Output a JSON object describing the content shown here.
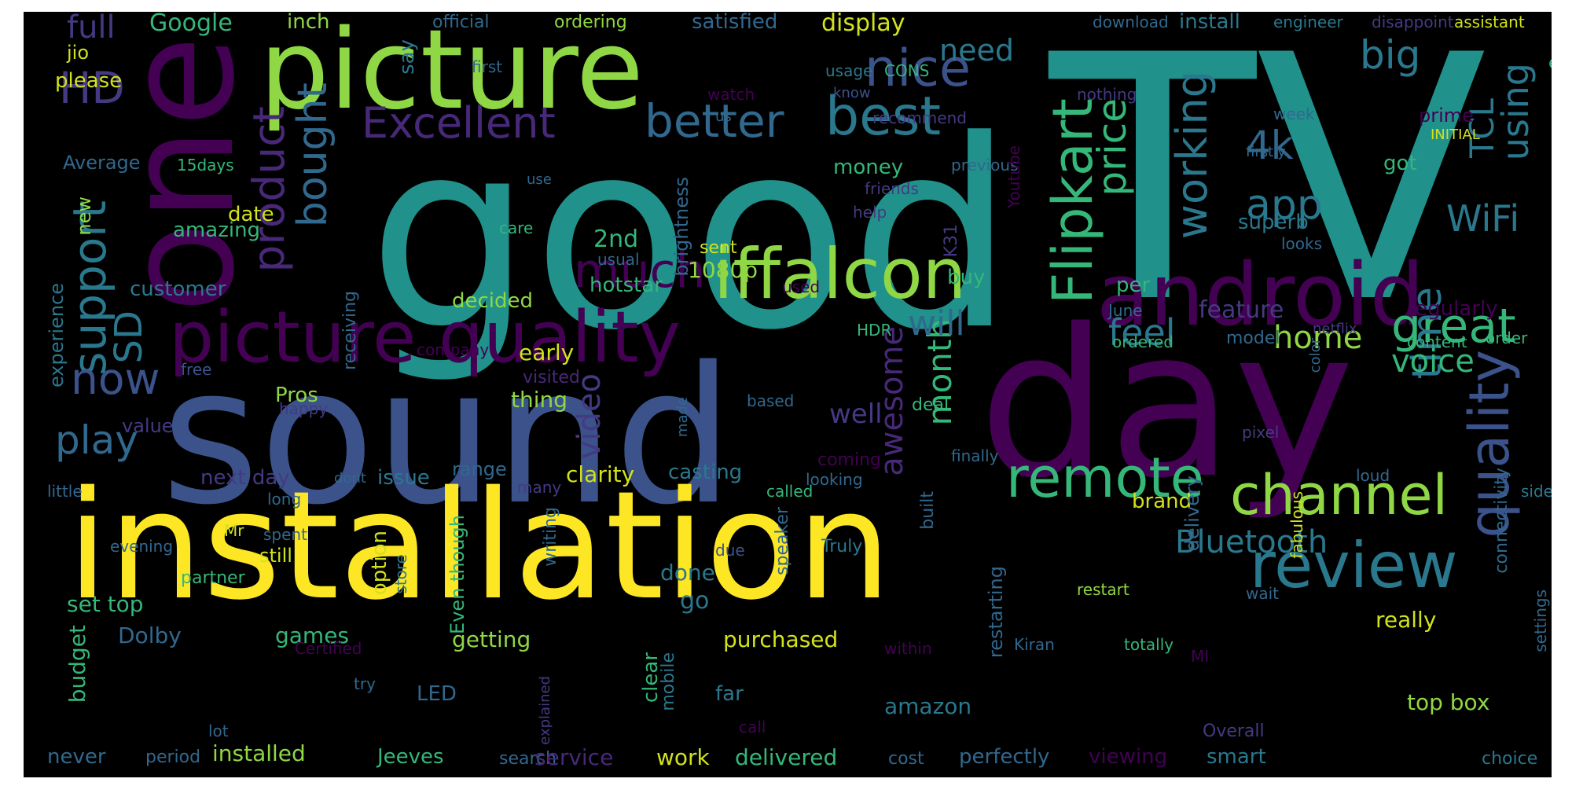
{
  "palette": {
    "yellow": "#fde725",
    "lime": "#8fd744",
    "green": "#35b779",
    "teal": "#21918c",
    "blue": "#31688e",
    "indigo": "#443a83",
    "purple": "#440154"
  },
  "words": [
    {
      "text": "TV",
      "color": "#21918c"
    },
    {
      "text": "good",
      "color": "#21918c"
    },
    {
      "text": "sound",
      "color": "#3b528b"
    },
    {
      "text": "installation",
      "color": "#fde725"
    },
    {
      "text": "day",
      "color": "#440154"
    },
    {
      "text": "one",
      "color": "#440154"
    },
    {
      "text": "picture",
      "color": "#8fd744"
    },
    {
      "text": "picture quality",
      "color": "#440154"
    },
    {
      "text": "android",
      "color": "#440154"
    },
    {
      "text": "iffalcon",
      "color": "#8fd744"
    },
    {
      "text": "review",
      "color": "#2a788e"
    },
    {
      "text": "channel",
      "color": "#8fd744"
    },
    {
      "text": "remote",
      "color": "#35b779"
    },
    {
      "text": "quality",
      "color": "#3b528b"
    },
    {
      "text": "Flipkart",
      "color": "#35b779"
    },
    {
      "text": "great",
      "color": "#35b779"
    },
    {
      "text": "nice",
      "color": "#3b528b"
    },
    {
      "text": "best",
      "color": "#2a788e"
    },
    {
      "text": "better",
      "color": "#31688e"
    },
    {
      "text": "Excellent",
      "color": "#482878"
    },
    {
      "text": "much",
      "color": "#440154"
    },
    {
      "text": "support",
      "color": "#2a788e"
    },
    {
      "text": "product",
      "color": "#482878"
    },
    {
      "text": "bought",
      "color": "#31688e"
    },
    {
      "text": "HD",
      "color": "#443a83"
    },
    {
      "text": "SD",
      "color": "#2a788e"
    },
    {
      "text": "now",
      "color": "#3b528b"
    },
    {
      "text": "play",
      "color": "#31688e"
    },
    {
      "text": "working",
      "color": "#2a788e"
    },
    {
      "text": "price",
      "color": "#35b779"
    },
    {
      "text": "4k",
      "color": "#31688e"
    },
    {
      "text": "app",
      "color": "#2a788e"
    },
    {
      "text": "WiFi",
      "color": "#2a788e"
    },
    {
      "text": "TCL",
      "color": "#2a788e"
    },
    {
      "text": "using",
      "color": "#2a788e"
    },
    {
      "text": "big",
      "color": "#2a788e"
    },
    {
      "text": "time",
      "color": "#2a788e"
    },
    {
      "text": "awesome",
      "color": "#482878"
    },
    {
      "text": "month",
      "color": "#35b779"
    },
    {
      "text": "video",
      "color": "#443a83"
    },
    {
      "text": "feel",
      "color": "#2a788e"
    },
    {
      "text": "will",
      "color": "#31688e"
    },
    {
      "text": "need",
      "color": "#2a788e"
    },
    {
      "text": "Bluetooth",
      "color": "#2a788e"
    },
    {
      "text": "voice",
      "color": "#35b779"
    },
    {
      "text": "home",
      "color": "#8fd744"
    },
    {
      "text": "full",
      "color": "#443a83"
    },
    {
      "text": "Google",
      "color": "#35b779"
    },
    {
      "text": "inch",
      "color": "#8fd744"
    },
    {
      "text": "official",
      "color": "#31688e"
    },
    {
      "text": "ordering",
      "color": "#8fd744"
    },
    {
      "text": "satisfied",
      "color": "#31688e"
    },
    {
      "text": "display",
      "color": "#d2e21b"
    },
    {
      "text": "download",
      "color": "#31688e"
    },
    {
      "text": "install",
      "color": "#2a788e"
    },
    {
      "text": "engineer",
      "color": "#2a788e"
    },
    {
      "text": "disappoint",
      "color": "#443a83"
    },
    {
      "text": "assistant",
      "color": "#d2e21b"
    },
    {
      "text": "eyes",
      "color": "#35b779"
    },
    {
      "text": "jio",
      "color": "#d2e21b"
    },
    {
      "text": "please",
      "color": "#d2e21b"
    },
    {
      "text": "say",
      "color": "#2a788e"
    },
    {
      "text": "first",
      "color": "#31688e"
    },
    {
      "text": "usage",
      "color": "#2a788e"
    },
    {
      "text": "CONS",
      "color": "#35b779"
    },
    {
      "text": "know",
      "color": "#3b528b"
    },
    {
      "text": "nothing",
      "color": "#443a83"
    },
    {
      "text": "watch",
      "color": "#440154"
    },
    {
      "text": "us",
      "color": "#31688e"
    },
    {
      "text": "recommend",
      "color": "#443a83"
    },
    {
      "text": "week",
      "color": "#31688e"
    },
    {
      "text": "prime",
      "color": "#440154"
    },
    {
      "text": "INITIAL",
      "color": "#d2e21b"
    },
    {
      "text": "firstly",
      "color": "#31688e"
    },
    {
      "text": "Average",
      "color": "#31688e"
    },
    {
      "text": "15days",
      "color": "#35b779"
    },
    {
      "text": "use",
      "color": "#31688e"
    },
    {
      "text": "money",
      "color": "#35b779"
    },
    {
      "text": "previous",
      "color": "#31688e"
    },
    {
      "text": "friends",
      "color": "#443a83"
    },
    {
      "text": "got",
      "color": "#35b779"
    },
    {
      "text": "new",
      "color": "#8fd744"
    },
    {
      "text": "date",
      "color": "#d2e21b"
    },
    {
      "text": "amazing",
      "color": "#35b779"
    },
    {
      "text": "care",
      "color": "#35b779"
    },
    {
      "text": "2nd",
      "color": "#35b779"
    },
    {
      "text": "sent",
      "color": "#d2e21b"
    },
    {
      "text": "usual",
      "color": "#31688e"
    },
    {
      "text": "1080p",
      "color": "#8fd744"
    },
    {
      "text": "hotstar",
      "color": "#35b779"
    },
    {
      "text": "brightness",
      "color": "#31688e"
    },
    {
      "text": "help",
      "color": "#443a83"
    },
    {
      "text": "K31",
      "color": "#443a83"
    },
    {
      "text": "Youtube",
      "color": "#440154"
    },
    {
      "text": "looks",
      "color": "#31688e"
    },
    {
      "text": "superb",
      "color": "#2a788e"
    },
    {
      "text": "customer",
      "color": "#2a788e"
    },
    {
      "text": "buy",
      "color": "#35b779"
    },
    {
      "text": "used",
      "color": "#440154"
    },
    {
      "text": "per",
      "color": "#35b779"
    },
    {
      "text": "June",
      "color": "#31688e"
    },
    {
      "text": "feature",
      "color": "#443a83"
    },
    {
      "text": "regularly",
      "color": "#440154"
    },
    {
      "text": "experience",
      "color": "#2a788e"
    },
    {
      "text": "decided",
      "color": "#8fd744"
    },
    {
      "text": "receiving",
      "color": "#31688e"
    },
    {
      "text": "HDR",
      "color": "#35b779"
    },
    {
      "text": "ordered",
      "color": "#35b779"
    },
    {
      "text": "model",
      "color": "#31688e"
    },
    {
      "text": "netflix",
      "color": "#443a83"
    },
    {
      "text": "content",
      "color": "#35b779"
    },
    {
      "text": "order",
      "color": "#35b779"
    },
    {
      "text": "free",
      "color": "#3b528b"
    },
    {
      "text": "company",
      "color": "#440154"
    },
    {
      "text": "early",
      "color": "#d2e21b"
    },
    {
      "text": "visited",
      "color": "#482878"
    },
    {
      "text": "color",
      "color": "#31688e"
    },
    {
      "text": "Pros",
      "color": "#8fd744"
    },
    {
      "text": "thing",
      "color": "#8fd744"
    },
    {
      "text": "based",
      "color": "#31688e"
    },
    {
      "text": "deal",
      "color": "#35b779"
    },
    {
      "text": "happy",
      "color": "#443a83"
    },
    {
      "text": "made",
      "color": "#31688e"
    },
    {
      "text": "well",
      "color": "#443a83"
    },
    {
      "text": "value",
      "color": "#443a83"
    },
    {
      "text": "finally",
      "color": "#31688e"
    },
    {
      "text": "pixel",
      "color": "#443a83"
    },
    {
      "text": "coming",
      "color": "#440154"
    },
    {
      "text": "next day",
      "color": "#443a83"
    },
    {
      "text": "issue",
      "color": "#2a788e"
    },
    {
      "text": "range",
      "color": "#31688e"
    },
    {
      "text": "clarity",
      "color": "#d2e21b"
    },
    {
      "text": "casting",
      "color": "#2a788e"
    },
    {
      "text": "looking",
      "color": "#31688e"
    },
    {
      "text": "little",
      "color": "#31688e"
    },
    {
      "text": "dont",
      "color": "#31688e"
    },
    {
      "text": "many",
      "color": "#443a83"
    },
    {
      "text": "called",
      "color": "#35b779"
    },
    {
      "text": "long",
      "color": "#31688e"
    },
    {
      "text": "loud",
      "color": "#31688e"
    },
    {
      "text": "side",
      "color": "#2a788e"
    },
    {
      "text": "brand",
      "color": "#d2e21b"
    },
    {
      "text": "evening",
      "color": "#31688e"
    },
    {
      "text": "Mr",
      "color": "#d2e21b"
    },
    {
      "text": "spent",
      "color": "#31688e"
    },
    {
      "text": "still",
      "color": "#d2e21b"
    },
    {
      "text": "writing",
      "color": "#31688e"
    },
    {
      "text": "due",
      "color": "#3b528b"
    },
    {
      "text": "Truly",
      "color": "#2a788e"
    },
    {
      "text": "speaker",
      "color": "#31688e"
    },
    {
      "text": "built",
      "color": "#31688e"
    },
    {
      "text": "delivery",
      "color": "#31688e"
    },
    {
      "text": "fabulous",
      "color": "#d2e21b"
    },
    {
      "text": "connectivity",
      "color": "#31688e"
    },
    {
      "text": "option",
      "color": "#d2e21b"
    },
    {
      "text": "store",
      "color": "#2a788e"
    },
    {
      "text": "Even though",
      "color": "#35b779"
    },
    {
      "text": "done",
      "color": "#2a788e"
    },
    {
      "text": "restart",
      "color": "#8fd744"
    },
    {
      "text": "wait",
      "color": "#31688e"
    },
    {
      "text": "partner",
      "color": "#35b779"
    },
    {
      "text": "set top",
      "color": "#35b779"
    },
    {
      "text": "go",
      "color": "#2a788e"
    },
    {
      "text": "restarting",
      "color": "#31688e"
    },
    {
      "text": "really",
      "color": "#d2e21b"
    },
    {
      "text": "settings",
      "color": "#31688e"
    },
    {
      "text": "Dolby",
      "color": "#31688e"
    },
    {
      "text": "games",
      "color": "#35b779"
    },
    {
      "text": "Certified",
      "color": "#440154"
    },
    {
      "text": "getting",
      "color": "#8fd744"
    },
    {
      "text": "purchased",
      "color": "#d2e21b"
    },
    {
      "text": "within",
      "color": "#440154"
    },
    {
      "text": "Kiran",
      "color": "#31688e"
    },
    {
      "text": "totally",
      "color": "#35b779"
    },
    {
      "text": "MI",
      "color": "#440154"
    },
    {
      "text": "budget",
      "color": "#35b779"
    },
    {
      "text": "try",
      "color": "#31688e"
    },
    {
      "text": "LED",
      "color": "#31688e"
    },
    {
      "text": "explained",
      "color": "#443a83"
    },
    {
      "text": "clear",
      "color": "#35b779"
    },
    {
      "text": "mobile",
      "color": "#2a788e"
    },
    {
      "text": "far",
      "color": "#2a788e"
    },
    {
      "text": "amazon",
      "color": "#2a788e"
    },
    {
      "text": "top box",
      "color": "#8fd744"
    },
    {
      "text": "call",
      "color": "#440154"
    },
    {
      "text": "lot",
      "color": "#31688e"
    },
    {
      "text": "Overall",
      "color": "#443a83"
    },
    {
      "text": "never",
      "color": "#31688e"
    },
    {
      "text": "period",
      "color": "#31688e"
    },
    {
      "text": "installed",
      "color": "#8fd744"
    },
    {
      "text": "Jeeves",
      "color": "#35b779"
    },
    {
      "text": "search",
      "color": "#31688e"
    },
    {
      "text": "service",
      "color": "#482878"
    },
    {
      "text": "work",
      "color": "#d2e21b"
    },
    {
      "text": "delivered",
      "color": "#35b779"
    },
    {
      "text": "cost",
      "color": "#31688e"
    },
    {
      "text": "perfectly",
      "color": "#31688e"
    },
    {
      "text": "viewing",
      "color": "#440154"
    },
    {
      "text": "smart",
      "color": "#2a788e"
    },
    {
      "text": "choice",
      "color": "#2a788e"
    }
  ]
}
